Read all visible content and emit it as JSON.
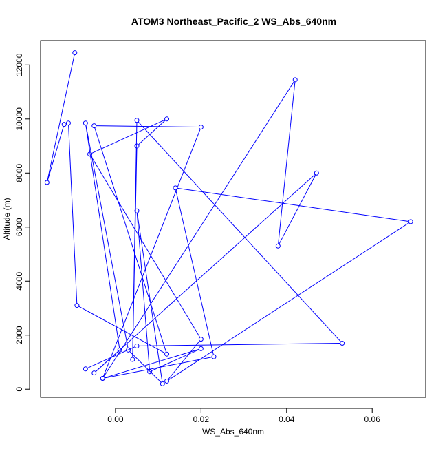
{
  "chart_data": {
    "type": "line",
    "title": "ATOM3 Northeast_Pacific_2 WS_Abs_640nm",
    "xlabel": "WS_Abs_640nm",
    "ylabel": "Altitude (m)",
    "xlim": [
      -0.0175,
      0.0725
    ],
    "ylim": [
      -300,
      12900
    ],
    "x_ticks": [
      0.0,
      0.02,
      0.04,
      0.06
    ],
    "x_tick_labels": [
      "0.00",
      "0.02",
      "0.04",
      "0.06"
    ],
    "y_ticks": [
      0,
      2000,
      4000,
      6000,
      8000,
      10000,
      12000
    ],
    "y_tick_labels": [
      "0",
      "2000",
      "4000",
      "6000",
      "8000",
      "10000",
      "12000"
    ],
    "grid": false,
    "marker": "open-circle",
    "series": [
      {
        "color": "#0000ff",
        "points": [
          {
            "x": -0.0095,
            "y": 12450
          },
          {
            "x": -0.016,
            "y": 7650
          },
          {
            "x": -0.012,
            "y": 9800
          },
          {
            "x": -0.011,
            "y": 9850
          },
          {
            "x": -0.009,
            "y": 3100
          },
          {
            "x": 0.012,
            "y": 1300
          },
          {
            "x": -0.005,
            "y": 9750
          },
          {
            "x": 0.02,
            "y": 9700
          },
          {
            "x": -0.003,
            "y": 400
          },
          {
            "x": 0.02,
            "y": 1500
          },
          {
            "x": 0.008,
            "y": 650
          },
          {
            "x": 0.005,
            "y": 6600
          },
          {
            "x": 0.011,
            "y": 200
          },
          {
            "x": 0.003,
            "y": 1450
          },
          {
            "x": -0.007,
            "y": 9850
          },
          {
            "x": 0.001,
            "y": 1450
          },
          {
            "x": -0.005,
            "y": 600
          },
          {
            "x": 0.047,
            "y": 8000
          },
          {
            "x": 0.038,
            "y": 5300
          },
          {
            "x": 0.042,
            "y": 11450
          },
          {
            "x": -0.003,
            "y": 400
          },
          {
            "x": 0.023,
            "y": 1200
          },
          {
            "x": 0.014,
            "y": 7450
          },
          {
            "x": 0.069,
            "y": 6200
          },
          {
            "x": 0.012,
            "y": 300
          },
          {
            "x": 0.02,
            "y": 1850
          },
          {
            "x": -0.006,
            "y": 8700
          },
          {
            "x": 0.012,
            "y": 10000
          },
          {
            "x": 0.005,
            "y": 9000
          },
          {
            "x": 0.004,
            "y": 1100
          },
          {
            "x": 0.005,
            "y": 9950
          },
          {
            "x": 0.053,
            "y": 1700
          },
          {
            "x": 0.005,
            "y": 1600
          },
          {
            "x": -0.007,
            "y": 750
          }
        ]
      }
    ]
  }
}
